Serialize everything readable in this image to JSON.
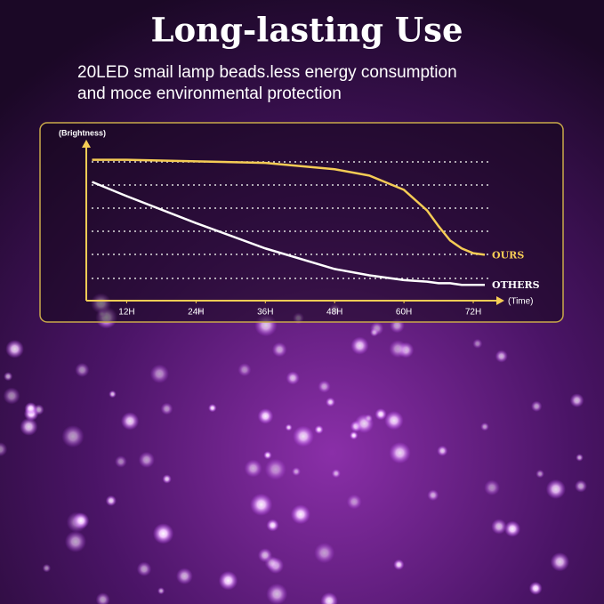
{
  "chart_data": {
    "type": "line",
    "title": "Long-lasting Use",
    "subtitle": [
      "20LED smail lamp beads.less energy consumption",
      "and moce environmental protection"
    ],
    "y_label": "(Brightness)",
    "x_label": "(Time)",
    "x": [
      6,
      12,
      24,
      36,
      48,
      54,
      60,
      64,
      66,
      68,
      70,
      72,
      74
    ],
    "series": [
      {
        "name": "OURS",
        "color": "#f5cc55",
        "values": [
          89,
          89,
          88,
          87,
          83,
          79,
          70,
          57,
          47,
          38,
          33,
          30,
          29
        ]
      },
      {
        "name": "OTHERS",
        "color": "#ffffff",
        "values": [
          75,
          66,
          49,
          33,
          20,
          16,
          13,
          12,
          11,
          11,
          10,
          10,
          10
        ]
      }
    ],
    "xlim": [
      5,
      76
    ],
    "ylim": [
      0,
      100
    ],
    "xticks": [
      {
        "value": 12,
        "label": "12H"
      },
      {
        "value": 24,
        "label": "24H"
      },
      {
        "value": 36,
        "label": "36H"
      },
      {
        "value": 48,
        "label": "48H"
      },
      {
        "value": 60,
        "label": "60H"
      },
      {
        "value": 72,
        "label": "72H"
      }
    ]
  }
}
